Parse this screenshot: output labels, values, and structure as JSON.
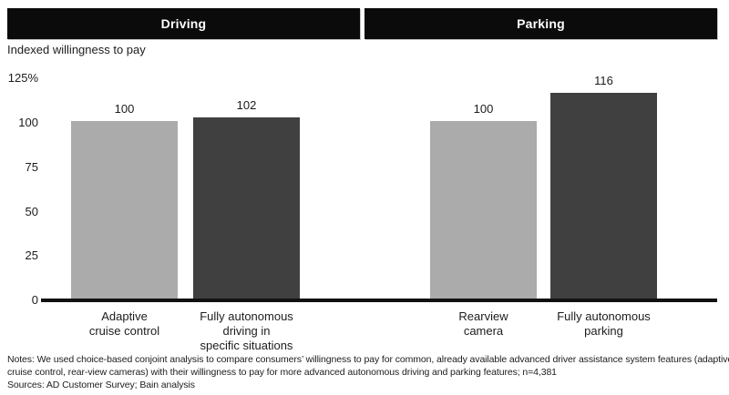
{
  "chart_data": {
    "type": "bar",
    "ylabel": "Indexed willingness to pay",
    "ylim": [
      0,
      125
    ],
    "grid": false,
    "legend_position": "none",
    "yticks": [
      {
        "value": 125,
        "label": "125%"
      },
      {
        "value": 100,
        "label": "100"
      },
      {
        "value": 75,
        "label": "75"
      },
      {
        "value": 50,
        "label": "50"
      },
      {
        "value": 25,
        "label": "25"
      },
      {
        "value": 0,
        "label": "0"
      }
    ],
    "panels": [
      {
        "label": "Driving",
        "bars": [
          {
            "category_lines": [
              "Adaptive",
              "cruise control"
            ],
            "value": 100,
            "value_label": "100",
            "color": "#ababab"
          },
          {
            "category_lines": [
              "Fully autonomous",
              "driving in",
              "specific situations"
            ],
            "value": 102,
            "value_label": "102",
            "color": "#404040"
          }
        ]
      },
      {
        "label": "Parking",
        "bars": [
          {
            "category_lines": [
              "Rearview",
              "camera"
            ],
            "value": 100,
            "value_label": "100",
            "color": "#ababab"
          },
          {
            "category_lines": [
              "Fully autonomous",
              "parking"
            ],
            "value": 116,
            "value_label": "116",
            "color": "#404040"
          }
        ]
      }
    ]
  },
  "footnotes": {
    "notes_lines": [
      "Notes: We used choice-based conjoint analysis to compare consumers’ willingness to pay for common, already available advanced driver assistance system features (adaptive",
      "cruise control, rear-view cameras) with their willingness to pay for more advanced autonomous driving and parking features; n=4,381"
    ],
    "sources": "Sources: AD Customer Survey; Bain analysis"
  },
  "colors": {
    "light_bar": "#ababab",
    "dark_bar": "#404040",
    "header_bg": "#0b0b0b",
    "header_text": "#ffffff",
    "axis_line": "#111111"
  }
}
